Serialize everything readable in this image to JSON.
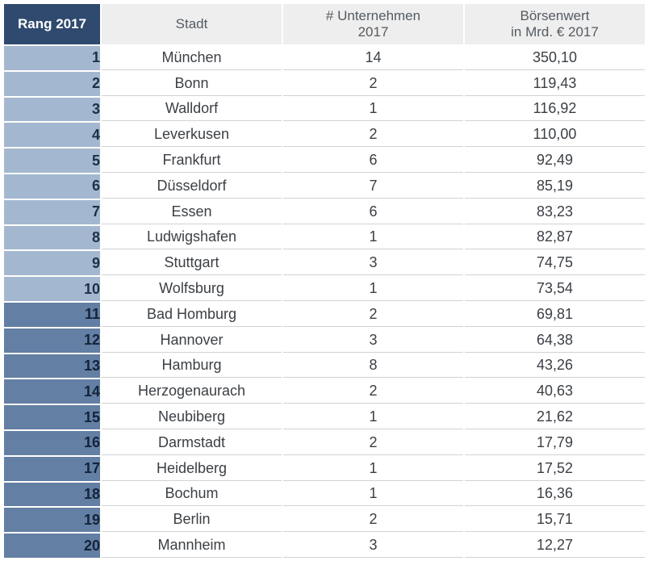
{
  "headers": {
    "rank": "Rang 2017",
    "city": "Stadt",
    "count_line1": "# Unternehmen",
    "count_line2": "2017",
    "value_line1": "Börsenwert",
    "value_line2": "in Mrd. € 2017"
  },
  "colors": {
    "header_rank_bg": "#2f4a6e",
    "top10_rank_bg": "#a3b8d0",
    "rest_rank_bg": "#637fa3",
    "header_bg": "#eeeeee"
  },
  "rows": [
    {
      "rank": "1",
      "city": "München",
      "count": "14",
      "value": "350,10"
    },
    {
      "rank": "2",
      "city": "Bonn",
      "count": "2",
      "value": "119,43"
    },
    {
      "rank": "3",
      "city": "Walldorf",
      "count": "1",
      "value": "116,92"
    },
    {
      "rank": "4",
      "city": "Leverkusen",
      "count": "2",
      "value": "110,00"
    },
    {
      "rank": "5",
      "city": "Frankfurt",
      "count": "6",
      "value": "92,49"
    },
    {
      "rank": "6",
      "city": "Düsseldorf",
      "count": "7",
      "value": "85,19"
    },
    {
      "rank": "7",
      "city": "Essen",
      "count": "6",
      "value": "83,23"
    },
    {
      "rank": "8",
      "city": "Ludwigshafen",
      "count": "1",
      "value": "82,87"
    },
    {
      "rank": "9",
      "city": "Stuttgart",
      "count": "3",
      "value": "74,75"
    },
    {
      "rank": "10",
      "city": "Wolfsburg",
      "count": "1",
      "value": "73,54"
    },
    {
      "rank": "11",
      "city": "Bad Homburg",
      "count": "2",
      "value": "69,81"
    },
    {
      "rank": "12",
      "city": "Hannover",
      "count": "3",
      "value": "64,38"
    },
    {
      "rank": "13",
      "city": "Hamburg",
      "count": "8",
      "value": "43,26"
    },
    {
      "rank": "14",
      "city": "Herzogenaurach",
      "count": "2",
      "value": "40,63"
    },
    {
      "rank": "15",
      "city": "Neubiberg",
      "count": "1",
      "value": "21,62"
    },
    {
      "rank": "16",
      "city": "Darmstadt",
      "count": "2",
      "value": "17,79"
    },
    {
      "rank": "17",
      "city": "Heidelberg",
      "count": "1",
      "value": "17,52"
    },
    {
      "rank": "18",
      "city": "Bochum",
      "count": "1",
      "value": "16,36"
    },
    {
      "rank": "19",
      "city": "Berlin",
      "count": "2",
      "value": "15,71"
    },
    {
      "rank": "20",
      "city": "Mannheim",
      "count": "3",
      "value": "12,27"
    }
  ]
}
